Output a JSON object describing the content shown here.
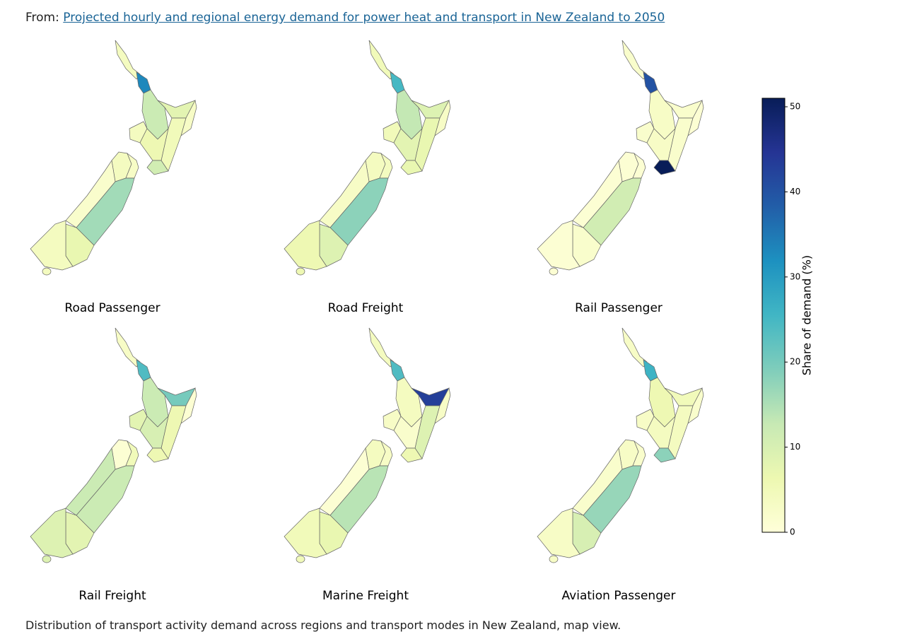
{
  "header": {
    "prefix": "From:",
    "link": "Projected hourly and regional energy demand for power heat and transport in New Zealand to 2050"
  },
  "panels": [
    {
      "title": "Road Passenger",
      "values": [
        4,
        33,
        12,
        8,
        3,
        5,
        4,
        6,
        11,
        4,
        3,
        2,
        16,
        7,
        4
      ]
    },
    {
      "title": "Road Freight",
      "values": [
        5,
        25,
        13,
        9,
        3,
        7,
        5,
        8,
        7,
        4,
        4,
        3,
        18,
        9,
        6
      ]
    },
    {
      "title": "Rail Passenger",
      "values": [
        2,
        40,
        3,
        2,
        1,
        2,
        2,
        3,
        51,
        1,
        1,
        1,
        11,
        2,
        1
      ]
    },
    {
      "title": "Rail Freight",
      "values": [
        3,
        24,
        12,
        20,
        1,
        6,
        8,
        10,
        6,
        1,
        5,
        12,
        12,
        8,
        9
      ]
    },
    {
      "title": "Marine Freight",
      "values": [
        4,
        24,
        4,
        43,
        3,
        9,
        3,
        2,
        6,
        4,
        3,
        1,
        14,
        7,
        5
      ]
    },
    {
      "title": "Aviation Passenger",
      "values": [
        3,
        26,
        6,
        5,
        2,
        4,
        3,
        4,
        18,
        3,
        2,
        2,
        17,
        10,
        3
      ]
    }
  ],
  "colorbar": {
    "label": "Share of demand (%)",
    "lim": [
      0,
      51
    ],
    "ticks": [
      0,
      10,
      20,
      30,
      40,
      50
    ]
  },
  "caption": "Distribution of transport activity demand across regions and transport modes in New Zealand, map view."
}
